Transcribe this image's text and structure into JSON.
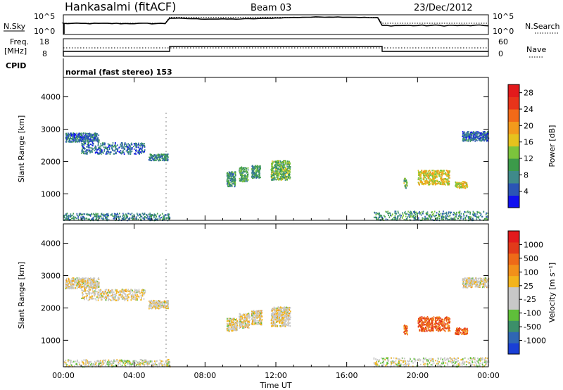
{
  "header": {
    "station": "Hankasalmi (fitACF)",
    "beam": "Beam 03",
    "date": "23/Dec/2012"
  },
  "summary": {
    "nsky_label": "N.Sky",
    "nsearch_label": "N.Search",
    "freq_label": "Freq.",
    "freq_unit": "[MHz]",
    "nave_label": "Nave",
    "cpid_label": "CPID",
    "cpid_text": "normal (fast stereo) 153",
    "noise_ticks": [
      "10^5",
      "10^0"
    ],
    "freq_ticks": [
      "18",
      "8"
    ],
    "nave_ticks": [
      "60",
      "0"
    ],
    "mode_switch_hours": [
      6,
      18
    ]
  },
  "chart_data": [
    {
      "type": "heatmap",
      "quantity": "power",
      "ylabel": "Slant Range [km]",
      "xlabel": "",
      "x_ticks": [
        "00:00",
        "04:00",
        "08:00",
        "12:00",
        "16:00",
        "20:00",
        "00:00"
      ],
      "y_ticks": [
        1000,
        2000,
        3000,
        4000
      ],
      "xlim_hours": [
        0,
        24
      ],
      "ylim_km": [
        180,
        4600
      ],
      "colorbar": {
        "label": "Power [dB]",
        "ticks": [
          4,
          8,
          12,
          16,
          20,
          24,
          28
        ],
        "range": [
          0,
          30
        ],
        "colors": [
          "#1010f0",
          "#2b55b5",
          "#3f8a8a",
          "#3c9a4a",
          "#7cc43c",
          "#e6c21e",
          "#f39a1c",
          "#f26a18",
          "#e8341a",
          "#e31a1c"
        ]
      },
      "scatter_regions": [
        {
          "h0": 0.1,
          "h1": 2.0,
          "r0": 2620,
          "r1": 2900,
          "level": 0.2
        },
        {
          "h0": 1.0,
          "h1": 4.6,
          "r0": 2250,
          "r1": 2600,
          "level": 0.2
        },
        {
          "h0": 4.8,
          "h1": 5.9,
          "r0": 2050,
          "r1": 2250,
          "level": 0.25
        },
        {
          "h0": 9.2,
          "h1": 9.7,
          "r0": 1250,
          "r1": 1700,
          "level": 0.3
        },
        {
          "h0": 9.9,
          "h1": 10.4,
          "r0": 1400,
          "r1": 1850,
          "level": 0.35
        },
        {
          "h0": 10.6,
          "h1": 11.1,
          "r0": 1500,
          "r1": 1900,
          "level": 0.3
        },
        {
          "h0": 11.7,
          "h1": 12.8,
          "r0": 1450,
          "r1": 2050,
          "level": 0.4
        },
        {
          "h0": 19.2,
          "h1": 19.4,
          "r0": 1200,
          "r1": 1500,
          "level": 0.4
        },
        {
          "h0": 20.0,
          "h1": 21.8,
          "r0": 1300,
          "r1": 1750,
          "level": 0.55
        },
        {
          "h0": 22.1,
          "h1": 22.8,
          "r0": 1200,
          "r1": 1400,
          "level": 0.55
        },
        {
          "h0": 22.5,
          "h1": 24.0,
          "r0": 2650,
          "r1": 2950,
          "level": 0.2
        },
        {
          "h0": 0.0,
          "h1": 6.0,
          "r0": 200,
          "r1": 420,
          "level": 0.25
        },
        {
          "h0": 17.5,
          "h1": 24.0,
          "r0": 200,
          "r1": 480,
          "level": 0.3
        }
      ]
    },
    {
      "type": "heatmap",
      "quantity": "velocity",
      "ylabel": "Slant Range [km]",
      "xlabel": "Time UT",
      "x_ticks": [
        "00:00",
        "04:00",
        "08:00",
        "12:00",
        "16:00",
        "20:00",
        "00:00"
      ],
      "y_ticks": [
        1000,
        2000,
        3000,
        4000
      ],
      "xlim_hours": [
        0,
        24
      ],
      "ylim_km": [
        180,
        4600
      ],
      "colorbar": {
        "label": "Velocity [m s⁻¹]",
        "ticks": [
          "1000",
          "500",
          "100",
          "25",
          "-25",
          "-100",
          "-500",
          "-1000"
        ],
        "colors": [
          "#1a3fd6",
          "#2f66b4",
          "#3c8f6a",
          "#5fbf3a",
          "#c8c8c8",
          "#c8c8c8",
          "#f3b41c",
          "#f2901a",
          "#ee6a18",
          "#e23a1a",
          "#e31a1c"
        ]
      },
      "scatter_regions": [
        {
          "h0": 0.1,
          "h1": 2.0,
          "r0": 2620,
          "r1": 2950,
          "level": 0.5
        },
        {
          "h0": 1.0,
          "h1": 4.6,
          "r0": 2250,
          "r1": 2600,
          "level": 0.5
        },
        {
          "h0": 4.8,
          "h1": 5.9,
          "r0": 2000,
          "r1": 2250,
          "level": 0.5
        },
        {
          "h0": 9.2,
          "h1": 9.8,
          "r0": 1300,
          "r1": 1700,
          "level": 0.5
        },
        {
          "h0": 9.9,
          "h1": 10.5,
          "r0": 1400,
          "r1": 1850,
          "level": 0.5
        },
        {
          "h0": 10.6,
          "h1": 11.2,
          "r0": 1500,
          "r1": 1950,
          "level": 0.5
        },
        {
          "h0": 11.7,
          "h1": 12.8,
          "r0": 1450,
          "r1": 2050,
          "level": 0.5
        },
        {
          "h0": 19.2,
          "h1": 19.4,
          "r0": 1200,
          "r1": 1500,
          "level": 0.75
        },
        {
          "h0": 20.0,
          "h1": 21.8,
          "r0": 1300,
          "r1": 1750,
          "level": 0.8
        },
        {
          "h0": 22.1,
          "h1": 22.8,
          "r0": 1200,
          "r1": 1400,
          "level": 0.8
        },
        {
          "h0": 22.5,
          "h1": 24.0,
          "r0": 2650,
          "r1": 2950,
          "level": 0.5
        },
        {
          "h0": 0.0,
          "h1": 6.0,
          "r0": 200,
          "r1": 420,
          "level": 0.45
        },
        {
          "h0": 17.5,
          "h1": 24.0,
          "r0": 200,
          "r1": 480,
          "level": 0.45
        }
      ]
    }
  ]
}
